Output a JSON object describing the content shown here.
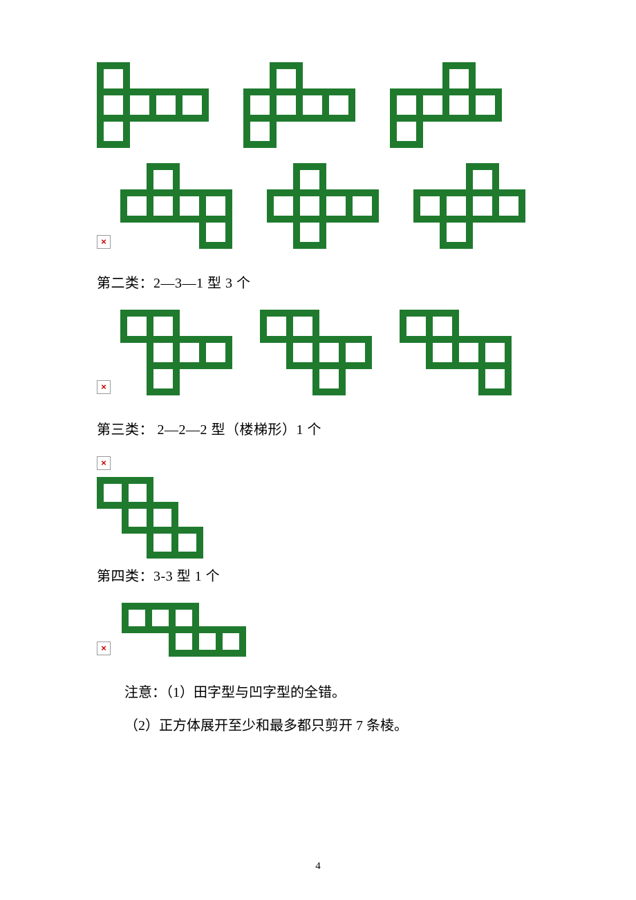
{
  "diagrams": {
    "cell_size_lg": 38,
    "cell_size_md": 36,
    "cell_size_sm": 34,
    "stroke_width": 10,
    "stroke_color": "#1f7a2e",
    "fill_color": "#ffffff",
    "section1_141": {
      "nets": [
        {
          "cells": [
            [
              0,
              0
            ],
            [
              0,
              1
            ],
            [
              1,
              1
            ],
            [
              2,
              1
            ],
            [
              3,
              1
            ],
            [
              0,
              2
            ]
          ],
          "cs": 38
        },
        {
          "cells": [
            [
              1,
              0
            ],
            [
              0,
              1
            ],
            [
              1,
              1
            ],
            [
              2,
              1
            ],
            [
              3,
              1
            ],
            [
              0,
              2
            ]
          ],
          "cs": 38
        },
        {
          "cells": [
            [
              2,
              0
            ],
            [
              0,
              1
            ],
            [
              1,
              1
            ],
            [
              2,
              1
            ],
            [
              3,
              1
            ],
            [
              0,
              2
            ]
          ],
          "cs": 38
        },
        {
          "cells": [
            [
              1,
              0
            ],
            [
              0,
              1
            ],
            [
              1,
              1
            ],
            [
              2,
              1
            ],
            [
              3,
              1
            ],
            [
              3,
              2
            ]
          ],
          "cs": 38
        },
        {
          "cells": [
            [
              1,
              0
            ],
            [
              0,
              1
            ],
            [
              1,
              1
            ],
            [
              2,
              1
            ],
            [
              3,
              1
            ],
            [
              1,
              2
            ]
          ],
          "cs": 38
        },
        {
          "cells": [
            [
              2,
              0
            ],
            [
              0,
              1
            ],
            [
              1,
              1
            ],
            [
              2,
              1
            ],
            [
              3,
              1
            ],
            [
              1,
              2
            ]
          ],
          "cs": 38
        }
      ]
    },
    "section2_231": {
      "heading": "第二类：2—3—1  型    3 个",
      "nets": [
        {
          "cells": [
            [
              0,
              0
            ],
            [
              1,
              0
            ],
            [
              1,
              1
            ],
            [
              2,
              1
            ],
            [
              3,
              1
            ],
            [
              1,
              2
            ]
          ],
          "cs": 38
        },
        {
          "cells": [
            [
              0,
              0
            ],
            [
              1,
              0
            ],
            [
              1,
              1
            ],
            [
              2,
              1
            ],
            [
              3,
              1
            ],
            [
              2,
              2
            ]
          ],
          "cs": 38
        },
        {
          "cells": [
            [
              0,
              0
            ],
            [
              1,
              0
            ],
            [
              1,
              1
            ],
            [
              2,
              1
            ],
            [
              3,
              1
            ],
            [
              3,
              2
            ]
          ],
          "cs": 38
        }
      ]
    },
    "section3_222": {
      "heading": "第三类：  2—2—2  型（楼梯形）1 个",
      "nets": [
        {
          "cells": [
            [
              0,
              0
            ],
            [
              1,
              0
            ],
            [
              1,
              1
            ],
            [
              2,
              1
            ],
            [
              2,
              2
            ],
            [
              3,
              2
            ]
          ],
          "cs": 36
        }
      ]
    },
    "section4_33": {
      "heading": "第四类：3-3  型    1 个",
      "nets": [
        {
          "cells": [
            [
              0,
              0
            ],
            [
              1,
              0
            ],
            [
              2,
              0
            ],
            [
              2,
              1
            ],
            [
              3,
              1
            ],
            [
              4,
              1
            ]
          ],
          "cs": 34
        }
      ]
    }
  },
  "notes": {
    "line1": "注意：（1）田字型与凹字型的全错。",
    "line2": "（2）正方体展开至少和最多都只剪开 7 条棱。"
  },
  "page_number": "4"
}
